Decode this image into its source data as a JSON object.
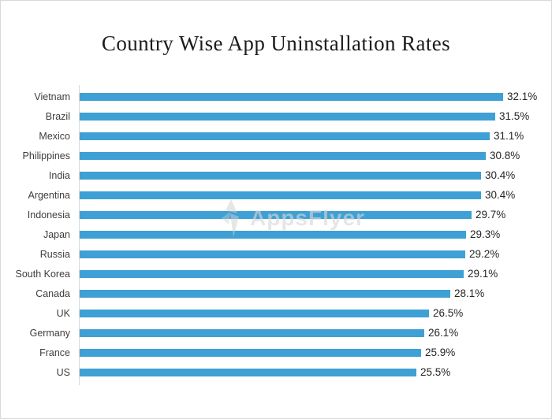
{
  "page": {
    "background": "#ffffff",
    "border_color": "#d9d9d9"
  },
  "title": "Country Wise App Uninstallation Rates",
  "watermark": {
    "text": "AppsFlyer",
    "logo": "appsflyer-leaf-logo"
  },
  "colors": {
    "bar": "#3EA0D4",
    "axis": "#D9D9D9",
    "title_text": "#1C1C1C",
    "category_text": "#3D3D3D",
    "value_text": "#262626"
  },
  "chart_data": {
    "type": "bar",
    "orientation": "horizontal",
    "title": "Country Wise App Uninstallation Rates",
    "categories": [
      "Vietnam",
      "Brazil",
      "Mexico",
      "Philippines",
      "India",
      "Argentina",
      "Indonesia",
      "Japan",
      "Russia",
      "South Korea",
      "Canada",
      "UK",
      "Germany",
      "France",
      "US"
    ],
    "values": [
      32.1,
      31.5,
      31.1,
      30.8,
      30.4,
      30.4,
      29.7,
      29.3,
      29.2,
      29.1,
      28.1,
      26.5,
      26.1,
      25.9,
      25.5
    ],
    "value_labels": [
      "32.1%",
      "31.5%",
      "31.1%",
      "30.8%",
      "30.4%",
      "30.4%",
      "29.7%",
      "29.3%",
      "29.2%",
      "29.1%",
      "28.1%",
      "26.5%",
      "26.1%",
      "25.9%",
      "25.5%"
    ],
    "xlabel": "",
    "ylabel": "",
    "xlim": [
      0,
      33.5
    ],
    "grid": false,
    "legend": false,
    "bar_color": "#3EA0D4",
    "axis_color": "#D9D9D9"
  }
}
